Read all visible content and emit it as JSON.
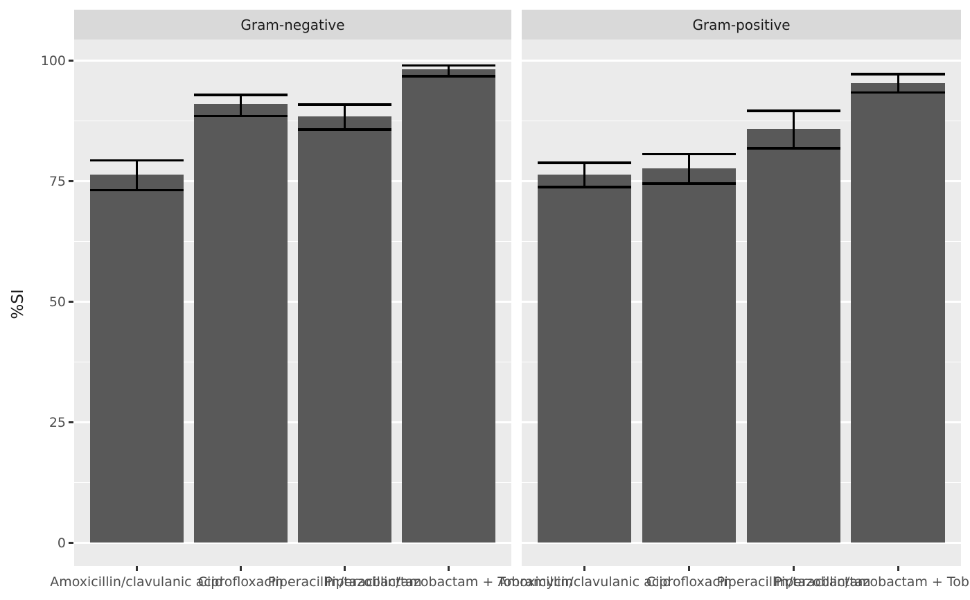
{
  "chart_data": {
    "type": "bar",
    "title": "",
    "xlabel": "",
    "ylabel": "%SI",
    "ylim": [
      0,
      100
    ],
    "y_ticks": [
      0,
      25,
      50,
      75,
      100
    ],
    "y_tick_labels": [
      "0",
      "25",
      "50",
      "75",
      "100"
    ],
    "y_minor_gridlines": [
      12.5,
      37.5,
      62.5,
      87.5
    ],
    "grid": "white major and minor horizontal gridlines on grey panel",
    "legend": "none",
    "facet_labels": [
      "Gram-negative",
      "Gram-positive"
    ],
    "categories": [
      "Amoxicillin/clavulanic acid",
      "Ciprofloxacin",
      "Piperacillin/tazobactam",
      "Piperacillin/tazobactam + Tobramycin"
    ],
    "facets": [
      {
        "label": "Gram-negative",
        "values": [
          76.3,
          91.0,
          88.4,
          98.2
        ],
        "ci_lower": [
          73.1,
          88.5,
          85.7,
          96.8
        ],
        "ci_upper": [
          79.3,
          92.9,
          90.9,
          99.0
        ]
      },
      {
        "label": "Gram-positive",
        "values": [
          76.4,
          77.6,
          85.9,
          95.3
        ],
        "ci_lower": [
          73.8,
          74.5,
          81.8,
          93.4
        ],
        "ci_upper": [
          78.8,
          80.6,
          89.6,
          97.2
        ]
      }
    ]
  },
  "colors": {
    "bar_fill": "#595959",
    "errorbar": "#000000",
    "panel_background": "#ebebeb",
    "strip_background": "#d9d9d9",
    "gridline": "#ffffff",
    "axis_text": "#4d4d4d",
    "strip_text": "#1a1a1a",
    "figure_background": "#ffffff"
  }
}
